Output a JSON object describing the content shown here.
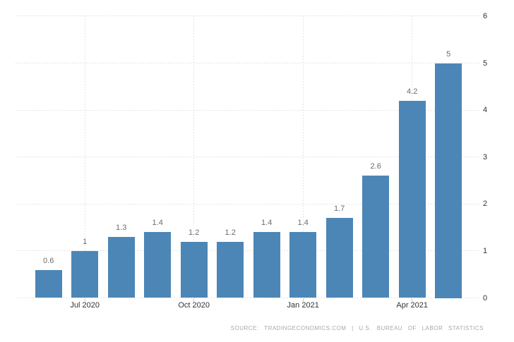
{
  "chart_data": {
    "type": "bar",
    "title": "",
    "xlabel": "",
    "ylabel": "",
    "values": [
      0.6,
      1,
      1.3,
      1.4,
      1.2,
      1.2,
      1.4,
      1.4,
      1.7,
      2.6,
      4.2,
      5
    ],
    "bar_value_labels": [
      "0.6",
      "1",
      "1.3",
      "1.4",
      "1.2",
      "1.2",
      "1.4",
      "1.4",
      "1.7",
      "2.6",
      "4.2",
      "5"
    ],
    "x_ticks": [
      {
        "index": 1,
        "label": "Jul 2020"
      },
      {
        "index": 4,
        "label": "Oct 2020"
      },
      {
        "index": 7,
        "label": "Jan 2021"
      },
      {
        "index": 10,
        "label": "Apr 2021"
      }
    ],
    "y_ticks": [
      "0",
      "1",
      "2",
      "3",
      "4",
      "5",
      "6"
    ],
    "ylim": [
      0,
      6
    ],
    "y_axis_side": "right",
    "grid": "dashed horizontal lines at each y tick, dashed vertical lines at labeled x ticks",
    "legend": "none",
    "colors": {
      "bar": "#4c86b7",
      "value_label": "#6b6b6b",
      "axis_label": "#333333",
      "gridline": "#e3e3e3",
      "tick": "#cccccc",
      "source_text": "#a8a8a8",
      "background": "#ffffff"
    },
    "source_text": "SOURCE: TRADINGECONOMICS.COM | U.S. BUREAU OF LABOR STATISTICS"
  }
}
